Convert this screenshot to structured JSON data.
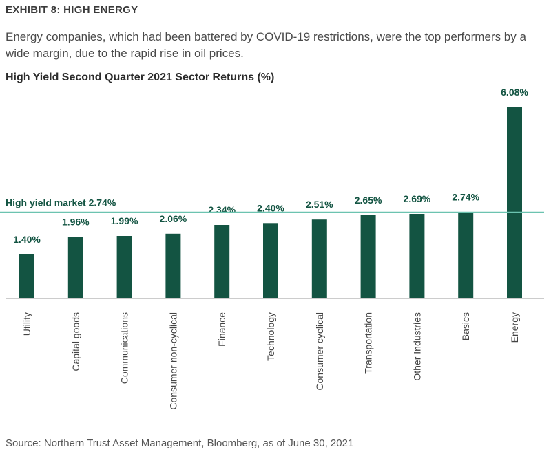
{
  "header": {
    "exhibit": "EXHIBIT 8: HIGH ENERGY",
    "subtitle": "Energy companies, which had been battered by COVID-19 restrictions, were the top performers by a wide margin, due to the rapid rise in oil prices."
  },
  "footer": {
    "source": "Source: Northern Trust Asset Management, Bloomberg, as of June 30, 2021"
  },
  "colors": {
    "bar": "#135442",
    "reference_line": "#6cc3b0",
    "axis": "#999999"
  },
  "chart_data": {
    "type": "bar",
    "title": "High Yield Second Quarter 2021 Sector Returns (%)",
    "categories": [
      "Utility",
      "Capital goods",
      "Communications",
      "Consumer non-cyclical",
      "Finance",
      "Technology",
      "Consumer cyclical",
      "Transportation",
      "Other Industries",
      "Basics",
      "Energy"
    ],
    "values": [
      1.4,
      1.96,
      1.99,
      2.06,
      2.34,
      2.4,
      2.51,
      2.65,
      2.69,
      2.74,
      6.08
    ],
    "data_labels": [
      "1.40%",
      "1.96%",
      "1.99%",
      "2.06%",
      "2.34%",
      "2.40%",
      "2.51%",
      "2.65%",
      "2.69%",
      "2.74%",
      "6.08%"
    ],
    "reference_line": {
      "value": 2.74,
      "label": "High yield market 2.74%"
    },
    "ylim": [
      0,
      6.08
    ],
    "xlabel": "",
    "ylabel": "",
    "grid": false,
    "legend": "none"
  }
}
